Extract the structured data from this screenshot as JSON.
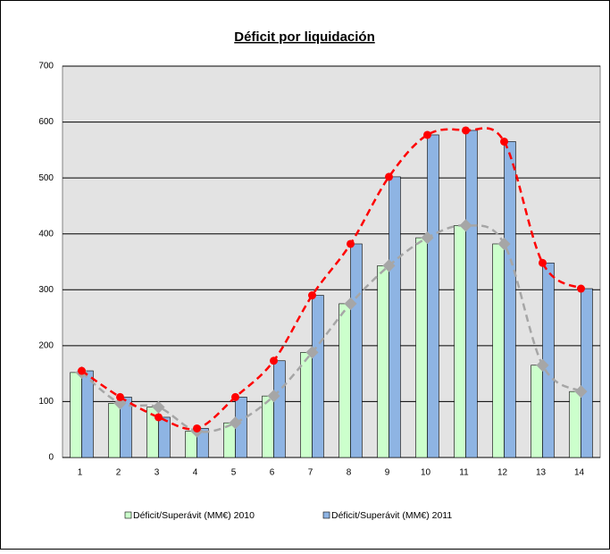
{
  "chart_data": {
    "type": "bar",
    "title": "Déficit por liquidación",
    "categories": [
      1,
      2,
      3,
      4,
      5,
      6,
      7,
      8,
      9,
      10,
      11,
      12,
      13,
      14
    ],
    "series": [
      {
        "name": "Déficit/Superávit (MM€) 2010",
        "color": "#ccffcc",
        "line_color": "#a6a6a6",
        "values": [
          152,
          97,
          90,
          47,
          62,
          110,
          188,
          275,
          343,
          393,
          415,
          382,
          165,
          118
        ]
      },
      {
        "name": "Déficit/Superávit (MM€) 2011",
        "color": "#8eb4e3",
        "line_color": "#ff0000",
        "values": [
          155,
          108,
          72,
          52,
          108,
          173,
          290,
          382,
          502,
          577,
          585,
          565,
          348,
          302
        ]
      }
    ],
    "ylim": [
      0,
      700
    ],
    "yticks": [
      0,
      100,
      200,
      300,
      400,
      500,
      600,
      700
    ],
    "grid": true,
    "legend": "bottom"
  }
}
